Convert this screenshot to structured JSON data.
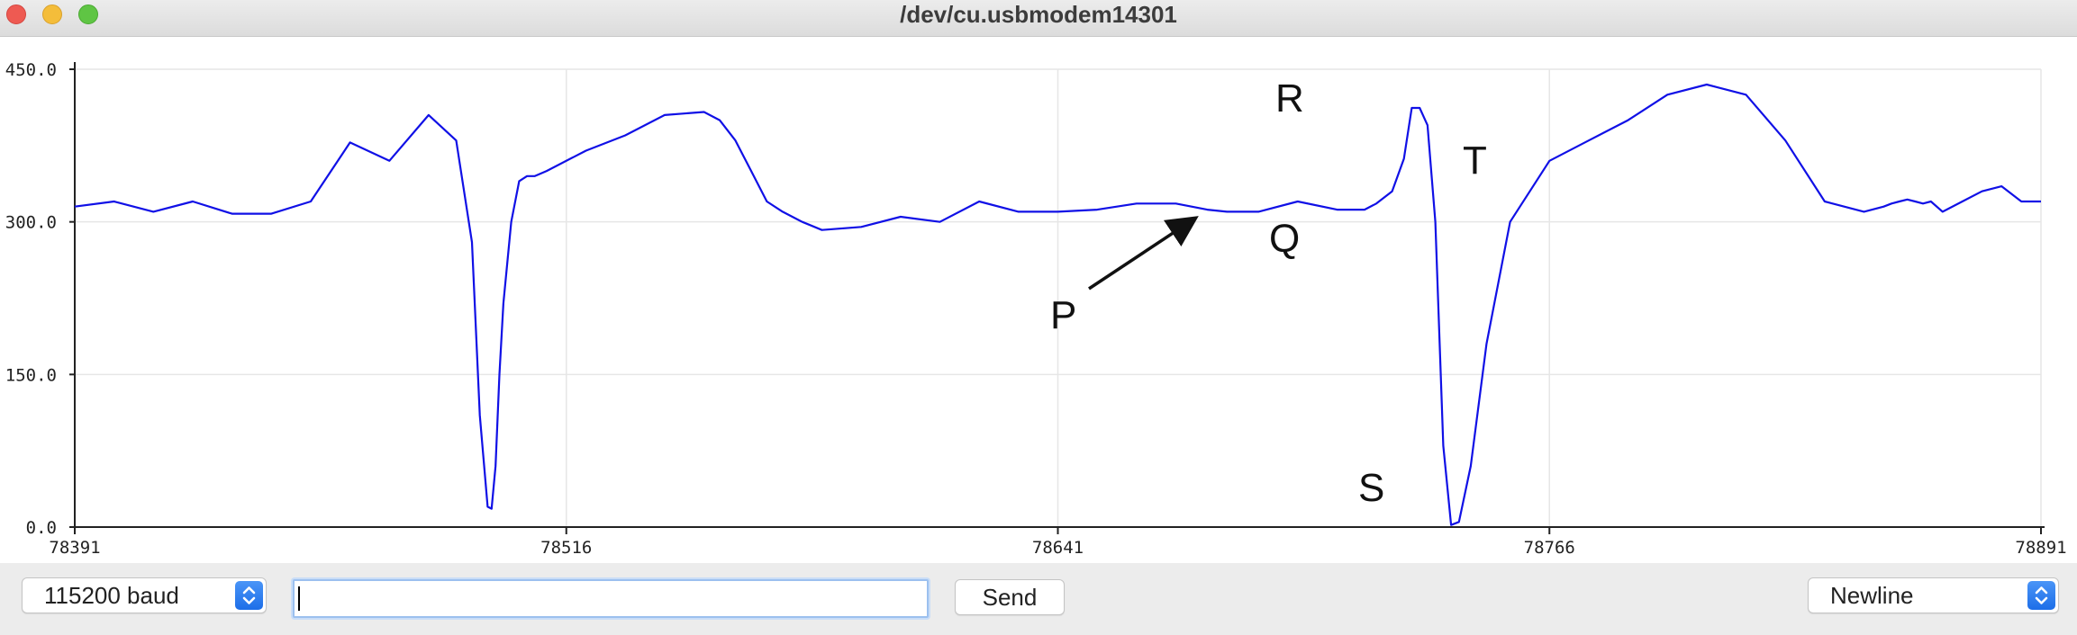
{
  "window": {
    "title": "/dev/cu.usbmodem14301"
  },
  "plot": {
    "line_color": "#1010e6",
    "grid_color": "#e6e6e6"
  },
  "chart_data": {
    "type": "line",
    "ylim": [
      0,
      450
    ],
    "xlim": [
      78391,
      78891
    ],
    "y_ticks": [
      "450.0",
      "300.0",
      "150.0",
      "0.0"
    ],
    "x_ticks": [
      "78391",
      "78516",
      "78641",
      "78766",
      "78891"
    ],
    "grid": true,
    "series": [
      {
        "x": [
          78391,
          78401,
          78411,
          78421,
          78431,
          78441,
          78451,
          78461,
          78471,
          78481,
          78488,
          78492,
          78494,
          78496,
          78497,
          78498,
          78499,
          78500,
          78502,
          78504,
          78506,
          78508,
          78511,
          78521,
          78531,
          78541,
          78551,
          78555,
          78559,
          78563,
          78567,
          78571,
          78576,
          78581,
          78591,
          78601,
          78611,
          78621,
          78631,
          78641,
          78651,
          78661,
          78671,
          78679,
          78684,
          78692,
          78702,
          78712,
          78719,
          78722,
          78726,
          78729,
          78731,
          78733,
          78735,
          78737,
          78739,
          78741,
          78743,
          78746,
          78750,
          78756,
          78766,
          78776,
          78786,
          78796,
          78806,
          78816,
          78826,
          78836,
          78846,
          78851,
          78853,
          78855,
          78857,
          78859,
          78861,
          78863,
          78866,
          78871,
          78876,
          78881,
          78886,
          78891
        ],
        "y": [
          315,
          320,
          310,
          320,
          308,
          308,
          320,
          378,
          360,
          405,
          380,
          280,
          110,
          20,
          18,
          60,
          150,
          220,
          300,
          340,
          345,
          345,
          350,
          370,
          385,
          405,
          408,
          400,
          380,
          350,
          320,
          310,
          300,
          292,
          295,
          305,
          300,
          320,
          310,
          310,
          312,
          318,
          318,
          312,
          310,
          310,
          320,
          312,
          312,
          318,
          330,
          362,
          412,
          412,
          395,
          300,
          80,
          2,
          5,
          60,
          180,
          300,
          360,
          380,
          400,
          425,
          435,
          425,
          380,
          320,
          310,
          315,
          318,
          320,
          322,
          320,
          318,
          320,
          310,
          320,
          330,
          335,
          320,
          320
        ]
      }
    ],
    "annotations": [
      "R",
      "T",
      "Q",
      "P",
      "S"
    ]
  },
  "bottom": {
    "baud_label": "115200 baud",
    "input_value": "",
    "send_label": "Send",
    "line_ending_label": "Newline"
  }
}
